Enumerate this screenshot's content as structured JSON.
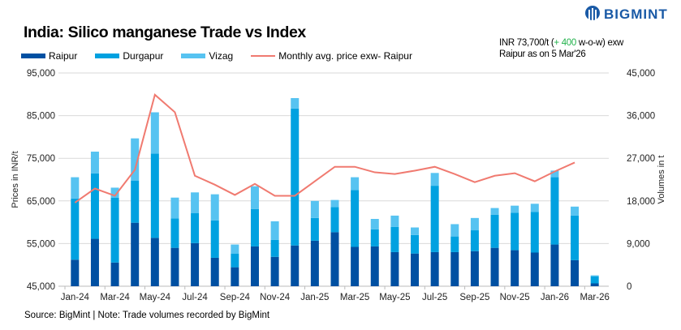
{
  "header": {
    "title": "India: Silico manganese Trade vs Index",
    "logo_text": "BIGMINT",
    "note_prefix": "INR 73,700/t (",
    "note_change": "+ 400",
    "note_suffix": " w-o-w) exw",
    "note_line2": "Raipur as on 5 Mar'26"
  },
  "source": "Source: BigMint | Note: Trade volumes recorded by BigMint",
  "chart_data": {
    "type": "bar",
    "stacked": true,
    "title": "India: Silico manganese Trade vs Index",
    "ylabel": "Prices in INR/t",
    "y2label": "Volumes in t",
    "ylim": [
      45000,
      95000
    ],
    "y2lim": [
      0,
      45000
    ],
    "yticks": [
      "45,000",
      "55,000",
      "65,000",
      "75,000",
      "85,000",
      "95,000"
    ],
    "y2ticks": [
      "0",
      "9,000",
      "18,000",
      "27,000",
      "36,000",
      "45,000"
    ],
    "grid": true,
    "legend_position": "top",
    "categories": [
      "Jan-24",
      "Feb-24",
      "Mar-24",
      "Apr-24",
      "May-24",
      "Jun-24",
      "Jul-24",
      "Aug-24",
      "Sep-24",
      "Oct-24",
      "Nov-24",
      "Dec-24",
      "Jan-25",
      "Feb-25",
      "Mar-25",
      "Apr-25",
      "May-25",
      "Jun-25",
      "Jul-25",
      "Aug-25",
      "Sep-25",
      "Oct-25",
      "Nov-25",
      "Dec-25",
      "Jan-26",
      "Feb-26",
      "Mar-26"
    ],
    "tick_labels": [
      "Jan-24",
      "Mar-24",
      "May-24",
      "Jul-24",
      "Sep-24",
      "Nov-24",
      "Jan-25",
      "Mar-25",
      "May-25",
      "Jul-25",
      "Sep-25",
      "Nov-25",
      "Jan-26",
      "Mar-26"
    ],
    "series": [
      {
        "name": "Raipur",
        "axis": "right",
        "color": "#0050a2",
        "values": [
          5600,
          10000,
          5000,
          13400,
          10200,
          8100,
          9100,
          6000,
          4000,
          8400,
          6200,
          8600,
          9600,
          11400,
          8300,
          8400,
          7200,
          6900,
          7200,
          7200,
          7400,
          8100,
          7600,
          7100,
          8800,
          5500,
          600
        ]
      },
      {
        "name": "Durgapur",
        "axis": "right",
        "color": "#00a1e0",
        "values": [
          12900,
          13800,
          13700,
          8900,
          17800,
          6200,
          6300,
          7900,
          2900,
          7900,
          3600,
          28900,
          4800,
          5300,
          12000,
          3600,
          5300,
          3900,
          14000,
          3300,
          4400,
          7000,
          7900,
          8600,
          14200,
          9400,
          1500
        ]
      },
      {
        "name": "Vizag",
        "axis": "right",
        "color": "#57c3f1",
        "values": [
          4500,
          4600,
          2100,
          8900,
          8700,
          4400,
          4400,
          5500,
          1900,
          4800,
          3900,
          2200,
          3600,
          1500,
          2700,
          2200,
          2400,
          1600,
          2700,
          2600,
          2600,
          1400,
          1500,
          1700,
          1400,
          1900,
          200
        ]
      },
      {
        "name": "Monthly avg. price exw- Raipur",
        "axis": "left",
        "type": "line",
        "color": "#f07a70",
        "values": [
          64600,
          67900,
          66200,
          72300,
          89900,
          85800,
          70900,
          68800,
          66400,
          69000,
          66200,
          66200,
          69600,
          73000,
          73000,
          71700,
          71300,
          72100,
          73000,
          71300,
          69400,
          70900,
          71500,
          69600,
          71900,
          74000,
          null
        ]
      }
    ]
  }
}
